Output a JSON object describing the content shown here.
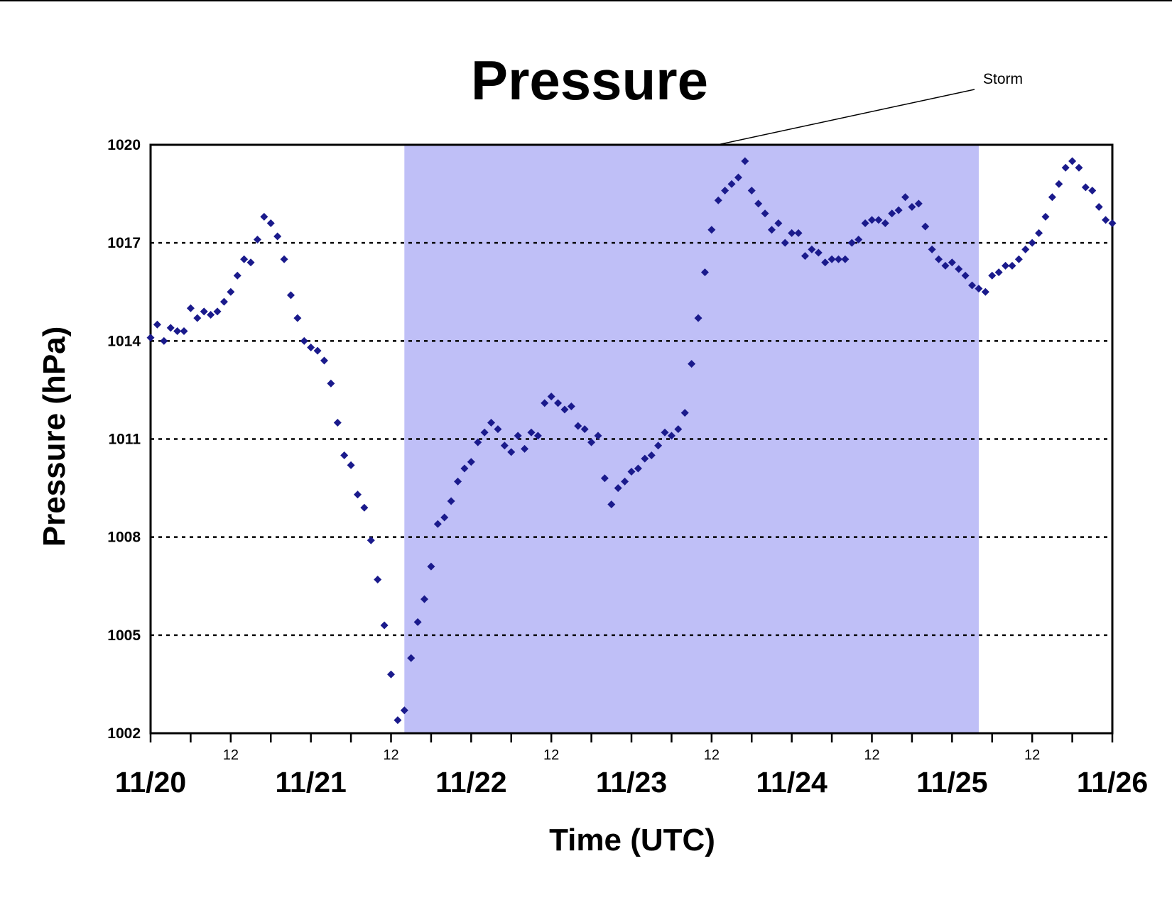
{
  "chart_data": {
    "type": "scatter",
    "title": "Pressure",
    "xlabel": "Time (UTC)",
    "ylabel": "Pressure (hPa)",
    "ylim": [
      1002,
      1020
    ],
    "yticks": [
      "1002",
      "1005",
      "1008",
      "1011",
      "1014",
      "1017",
      "1020"
    ],
    "xlim": [
      "11/20 00",
      "11/26 00"
    ],
    "x_date_labels": [
      "11/20",
      "11/21",
      "11/22",
      "11/23",
      "11/24",
      "11/25",
      "11/26"
    ],
    "x_mid_labels": [
      "12",
      "12",
      "12",
      "12",
      "12",
      "12"
    ],
    "grid": "horizontal dotted",
    "marker_color": "#1a1a8c",
    "shade_color": "#bfbff7",
    "shaded_region": {
      "label": "Storm",
      "start": "11/21 14",
      "end": "11/25 04"
    },
    "annotation": "Storm",
    "series": [
      {
        "x": [
          "11/20 00",
          "11/20 01",
          "11/20 02",
          "11/20 03",
          "11/20 04",
          "11/20 05",
          "11/20 06",
          "11/20 07",
          "11/20 08",
          "11/20 09",
          "11/20 10",
          "11/20 11",
          "11/20 12",
          "11/20 13",
          "11/20 14",
          "11/20 15",
          "11/20 16",
          "11/20 17",
          "11/20 18",
          "11/20 19",
          "11/20 20",
          "11/20 21",
          "11/20 22",
          "11/20 23",
          "11/21 00",
          "11/21 01",
          "11/21 02",
          "11/21 03",
          "11/21 04",
          "11/21 05",
          "11/21 06",
          "11/21 07",
          "11/21 08",
          "11/21 09",
          "11/21 10",
          "11/21 11",
          "11/21 12",
          "11/21 13",
          "11/21 14",
          "11/21 15",
          "11/21 16",
          "11/21 17",
          "11/21 18",
          "11/21 19",
          "11/21 20",
          "11/21 21",
          "11/21 22",
          "11/21 23",
          "11/22 00",
          "11/22 01",
          "11/22 02",
          "11/22 03",
          "11/22 04",
          "11/22 05",
          "11/22 06",
          "11/22 07",
          "11/22 08",
          "11/22 09",
          "11/22 10",
          "11/22 11",
          "11/22 12",
          "11/22 13",
          "11/22 14",
          "11/22 15",
          "11/22 16",
          "11/22 17",
          "11/22 18",
          "11/22 19",
          "11/22 20",
          "11/22 21",
          "11/22 22",
          "11/22 23",
          "11/23 00",
          "11/23 01",
          "11/23 02",
          "11/23 03",
          "11/23 04",
          "11/23 05",
          "11/23 06",
          "11/23 07",
          "11/23 08",
          "11/23 09",
          "11/23 10",
          "11/23 11",
          "11/23 12",
          "11/23 13",
          "11/23 14",
          "11/23 15",
          "11/23 16",
          "11/23 17",
          "11/23 18",
          "11/23 19",
          "11/23 20",
          "11/23 21",
          "11/23 22",
          "11/23 23",
          "11/24 00",
          "11/24 01",
          "11/24 02",
          "11/24 03",
          "11/24 04",
          "11/24 05",
          "11/24 06",
          "11/24 07",
          "11/24 08",
          "11/24 09",
          "11/24 10",
          "11/24 11",
          "11/24 12",
          "11/24 13",
          "11/24 14",
          "11/24 15",
          "11/24 16",
          "11/24 17",
          "11/24 18",
          "11/24 19",
          "11/24 20",
          "11/24 21",
          "11/24 22",
          "11/24 23",
          "11/25 00",
          "11/25 01",
          "11/25 02",
          "11/25 03",
          "11/25 04",
          "11/25 05",
          "11/25 06",
          "11/25 07",
          "11/25 08",
          "11/25 09",
          "11/25 10",
          "11/25 11",
          "11/25 12",
          "11/25 13",
          "11/25 14",
          "11/25 15",
          "11/25 16",
          "11/25 17",
          "11/25 18",
          "11/25 19",
          "11/25 20",
          "11/25 21",
          "11/25 22",
          "11/25 23",
          "11/26 00"
        ],
        "y": [
          1014.1,
          1014.5,
          1014.0,
          1014.4,
          1014.3,
          1014.3,
          1015.0,
          1014.7,
          1014.9,
          1014.8,
          1014.9,
          1015.2,
          1015.5,
          1016.0,
          1016.5,
          1016.4,
          1017.1,
          1017.8,
          1017.6,
          1017.2,
          1016.5,
          1015.4,
          1014.7,
          1014.0,
          1013.8,
          1013.7,
          1013.4,
          1012.7,
          1011.5,
          1010.5,
          1010.2,
          1009.3,
          1008.9,
          1007.9,
          1006.7,
          1005.3,
          1003.8,
          1002.4,
          1002.7,
          1004.3,
          1005.4,
          1006.1,
          1007.1,
          1008.4,
          1008.6,
          1009.1,
          1009.7,
          1010.1,
          1010.3,
          1010.9,
          1011.2,
          1011.5,
          1011.3,
          1010.8,
          1010.6,
          1011.1,
          1010.7,
          1011.2,
          1011.1,
          1012.1,
          1012.3,
          1012.1,
          1011.9,
          1012.0,
          1011.4,
          1011.3,
          1010.9,
          1011.1,
          1009.8,
          1009.0,
          1009.5,
          1009.7,
          1010.0,
          1010.1,
          1010.4,
          1010.5,
          1010.8,
          1011.2,
          1011.1,
          1011.3,
          1011.8,
          1013.3,
          1014.7,
          1016.1,
          1017.4,
          1018.3,
          1018.6,
          1018.8,
          1019.0,
          1019.5,
          1018.6,
          1018.2,
          1017.9,
          1017.4,
          1017.6,
          1017.0,
          1017.3,
          1017.3,
          1016.6,
          1016.8,
          1016.7,
          1016.4,
          1016.5,
          1016.5,
          1016.5,
          1017.0,
          1017.1,
          1017.6,
          1017.7,
          1017.7,
          1017.6,
          1017.9,
          1018.0,
          1018.4,
          1018.1,
          1018.2,
          1017.5,
          1016.8,
          1016.5,
          1016.3,
          1016.4,
          1016.2,
          1016.0,
          1015.7,
          1015.6,
          1015.5,
          1016.0,
          1016.1,
          1016.3,
          1016.3,
          1016.5,
          1016.8,
          1017.0,
          1017.3,
          1017.8,
          1018.4,
          1018.8,
          1019.3,
          1019.5,
          1019.3,
          1018.7,
          1018.6,
          1018.1,
          1017.7,
          1017.6
        ]
      }
    ]
  }
}
